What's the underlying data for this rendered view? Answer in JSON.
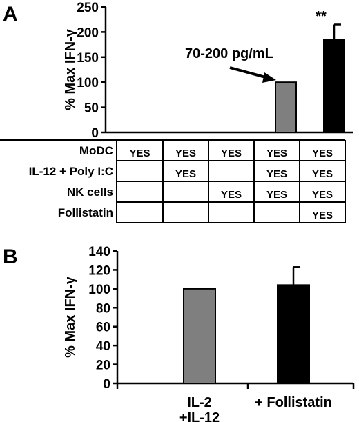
{
  "panel_a": {
    "letter": "A",
    "annotation": "70-200 pg/mL",
    "significance": "**",
    "table": {
      "rows": [
        {
          "label": "MoDC",
          "cells": [
            "YES",
            "YES",
            "YES",
            "YES",
            "YES"
          ]
        },
        {
          "label": "IL-12 + Poly I:C",
          "cells": [
            "",
            "YES",
            "",
            "YES",
            "YES"
          ]
        },
        {
          "label": "NK cells",
          "cells": [
            "",
            "",
            "YES",
            "YES",
            "YES"
          ]
        },
        {
          "label": "Follistatin",
          "cells": [
            "",
            "",
            "",
            "",
            "YES"
          ]
        }
      ]
    }
  },
  "panel_b": {
    "letter": "B"
  },
  "colors": {
    "gray_bar": "#7f7f7f",
    "black_bar": "#000000"
  },
  "chart_data": [
    {
      "type": "bar",
      "ylabel": "% Max IFN-γ",
      "ylim": [
        0,
        250
      ],
      "yticks": [
        0,
        50,
        100,
        150,
        200,
        250
      ],
      "values": [
        0,
        0,
        0,
        100,
        185
      ],
      "errors": [
        0,
        0,
        0,
        0,
        30
      ],
      "bar_colors": [
        "#7f7f7f",
        "#7f7f7f",
        "#7f7f7f",
        "#7f7f7f",
        "#000000"
      ],
      "grid": false
    },
    {
      "type": "bar",
      "categories": [
        "IL-2\n+IL-12",
        "+ Follistatin"
      ],
      "ylabel": "% Max IFN-γ",
      "ylim": [
        0,
        140
      ],
      "yticks": [
        0,
        20,
        40,
        60,
        80,
        100,
        120,
        140
      ],
      "values": [
        100,
        104
      ],
      "errors": [
        0,
        19
      ],
      "bar_colors": [
        "#7f7f7f",
        "#000000"
      ],
      "grid": false
    }
  ]
}
